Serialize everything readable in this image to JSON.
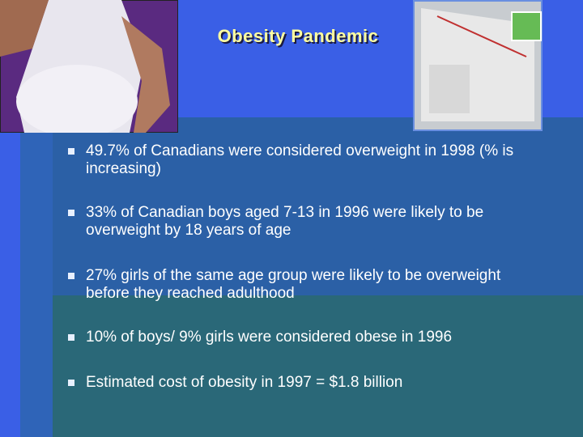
{
  "header": {
    "title": "Obesity Pandemic"
  },
  "bullets": [
    "49.7% of Canadians were considered overweight in 1998 (% is increasing)",
    "33% of Canadian boys aged 7-13 in 1996 were likely to be overweight by 18 years of age",
    "27% girls of the same age group were likely to be overweight before they reached adulthood",
    "10% of boys/ 9% girls were considered obese in 1996",
    "Estimated cost of obesity in 1997 = $1.8 billion"
  ]
}
